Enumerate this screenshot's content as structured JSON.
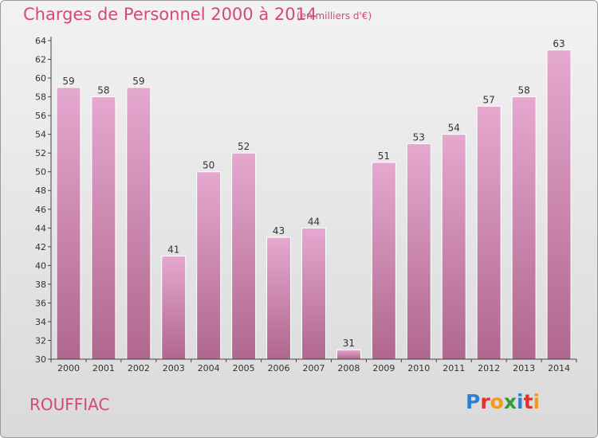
{
  "header": {
    "title": "Charges de Personnel 2000 à 2014",
    "subtitle": "(en milliers d'€)"
  },
  "footer": {
    "city": "ROUFFIAC",
    "logo": {
      "letters": [
        "P",
        "r",
        "o",
        "x",
        "i",
        "t",
        "i"
      ],
      "colors": [
        "#2f7fd0",
        "#e0312e",
        "#f29a1b",
        "#2f9b3a",
        "#2f7fd0",
        "#e0312e",
        "#f29a1b"
      ]
    }
  },
  "colors": {
    "accent": "#d24a79",
    "bar_top": "#e5a8cf",
    "bar_bottom": "#b0678f",
    "axis": "#444444"
  },
  "chart_data": {
    "type": "bar",
    "title": "Charges de Personnel 2000 à 2014",
    "subtitle": "(en milliers d'€)",
    "categories": [
      "2000",
      "2001",
      "2002",
      "2003",
      "2004",
      "2005",
      "2006",
      "2007",
      "2008",
      "2009",
      "2010",
      "2011",
      "2012",
      "2013",
      "2014"
    ],
    "values": [
      59,
      58,
      59,
      41,
      50,
      52,
      43,
      44,
      31,
      51,
      53,
      54,
      57,
      58,
      63
    ],
    "ylim": [
      30,
      64
    ],
    "yticks": [
      30,
      32,
      34,
      36,
      38,
      40,
      42,
      44,
      46,
      48,
      50,
      52,
      54,
      56,
      58,
      60,
      62,
      64
    ],
    "xlabel": "",
    "ylabel": "",
    "grid": false,
    "data_labels": true
  }
}
